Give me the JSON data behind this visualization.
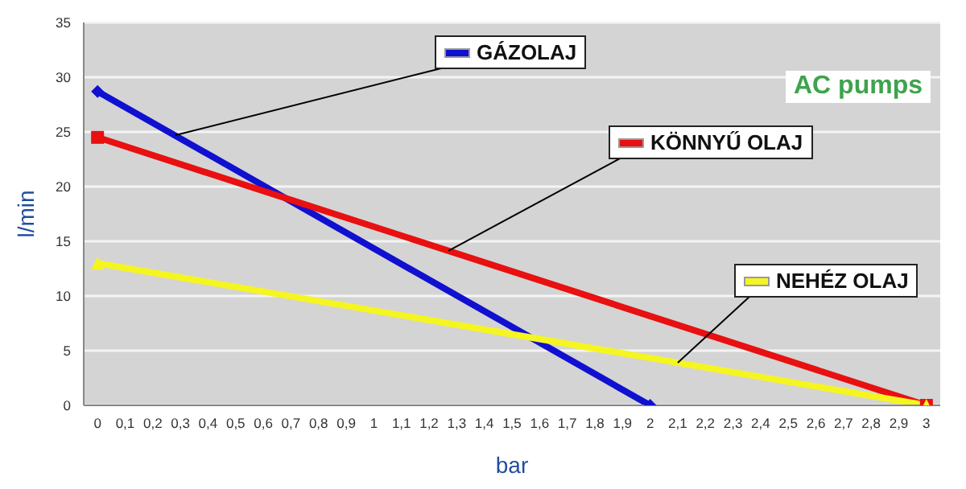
{
  "chart_data": {
    "type": "line",
    "xlabel": "bar",
    "ylabel": "l/min",
    "xlim": [
      -0.05,
      3.05
    ],
    "ylim": [
      0,
      35
    ],
    "xticks": [
      {
        "value": 0,
        "label": "0"
      },
      {
        "value": 0.1,
        "label": "0,1"
      },
      {
        "value": 0.2,
        "label": "0,2"
      },
      {
        "value": 0.3,
        "label": "0,3"
      },
      {
        "value": 0.4,
        "label": "0,4"
      },
      {
        "value": 0.5,
        "label": "0,5"
      },
      {
        "value": 0.6,
        "label": "0,6"
      },
      {
        "value": 0.7,
        "label": "0,7"
      },
      {
        "value": 0.8,
        "label": "0,8"
      },
      {
        "value": 0.9,
        "label": "0,9"
      },
      {
        "value": 1,
        "label": "1"
      },
      {
        "value": 1.1,
        "label": "1,1"
      },
      {
        "value": 1.2,
        "label": "1,2"
      },
      {
        "value": 1.3,
        "label": "1,3"
      },
      {
        "value": 1.4,
        "label": "1,4"
      },
      {
        "value": 1.5,
        "label": "1,5"
      },
      {
        "value": 1.6,
        "label": "1,6"
      },
      {
        "value": 1.7,
        "label": "1,7"
      },
      {
        "value": 1.8,
        "label": "1,8"
      },
      {
        "value": 1.9,
        "label": "1,9"
      },
      {
        "value": 2,
        "label": "2"
      },
      {
        "value": 2.1,
        "label": "2,1"
      },
      {
        "value": 2.2,
        "label": "2,2"
      },
      {
        "value": 2.3,
        "label": "2,3"
      },
      {
        "value": 2.4,
        "label": "2,4"
      },
      {
        "value": 2.5,
        "label": "2,5"
      },
      {
        "value": 2.6,
        "label": "2,6"
      },
      {
        "value": 2.7,
        "label": "2,7"
      },
      {
        "value": 2.8,
        "label": "2,8"
      },
      {
        "value": 2.9,
        "label": "2,9"
      },
      {
        "value": 3,
        "label": "3"
      }
    ],
    "yticks": [
      0,
      5,
      10,
      15,
      20,
      25,
      30,
      35
    ],
    "grid": "y",
    "legend": "right",
    "line_style": "solid",
    "annotations": [
      "AC pumps"
    ],
    "series": [
      {
        "name": "GÁZOLAJ",
        "color": "#1010d0",
        "x": [
          0,
          2
        ],
        "values": [
          28.7,
          0
        ],
        "marker": "diamond"
      },
      {
        "name": "KÖNNYŰ OLAJ",
        "color": "#e81010",
        "x": [
          0,
          3
        ],
        "values": [
          24.5,
          0
        ],
        "marker": "square"
      },
      {
        "name": "NEHÉZ OLAJ",
        "color": "#f5f522",
        "x": [
          0,
          3
        ],
        "values": [
          13,
          0
        ],
        "marker": "triangle"
      }
    ]
  }
}
